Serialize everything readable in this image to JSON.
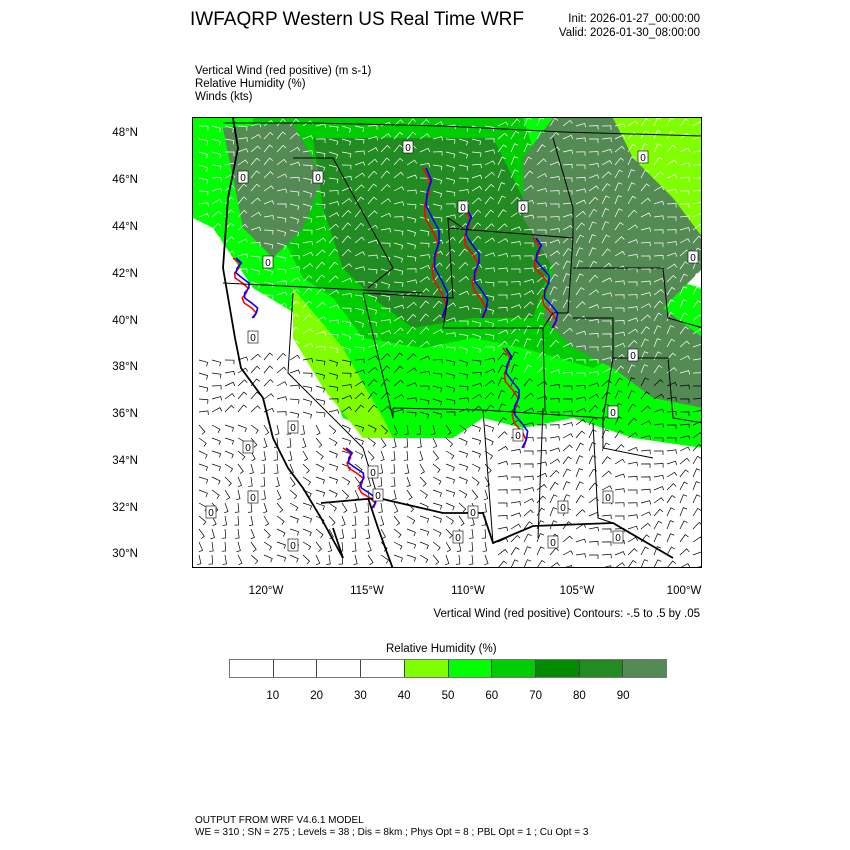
{
  "header": {
    "title": "IWFAQRP Western US Real Time WRF",
    "init": "Init: 2026-01-27_00:00:00",
    "valid": "Valid: 2026-01-30_08:00:00"
  },
  "fields": [
    "Vertical Wind (red positive)   (m s-1)",
    "Relative Humidity   (%)",
    "Winds   (kts)"
  ],
  "map": {
    "lat_labels": [
      "48°N",
      "46°N",
      "44°N",
      "42°N",
      "40°N",
      "38°N",
      "36°N",
      "34°N",
      "32°N",
      "30°N"
    ],
    "lon_labels": [
      "120°W",
      "115°W",
      "110°W",
      "105°W",
      "100°W"
    ],
    "contour_label": "0",
    "vertical_wind_colors": {
      "positive": "#ff0000",
      "negative": "#0000ff"
    },
    "wind_barb_colors": {
      "over_land": "#000000",
      "over_green": "#ffffff"
    }
  },
  "contour_info": "Vertical Wind (red positive) Contours: -.5 to .5 by .05",
  "colorbar": {
    "title": "Relative Humidity  (%)",
    "colors": [
      "#ffffff",
      "#ffffff",
      "#ffffff",
      "#ffffff",
      "#7fff00",
      "#00ff00",
      "#00cd00",
      "#008b00",
      "#228b22",
      "#548b54"
    ],
    "labels": [
      "10",
      "20",
      "30",
      "40",
      "50",
      "60",
      "70",
      "80",
      "90"
    ]
  },
  "footer": {
    "line1": "OUTPUT FROM WRF V4.6.1 MODEL",
    "line2": "WE = 310 ; SN = 275 ; Levels = 38 ; Dis = 8km ; Phys Opt = 8 ; PBL Opt = 1 ; Cu Opt = 3"
  }
}
